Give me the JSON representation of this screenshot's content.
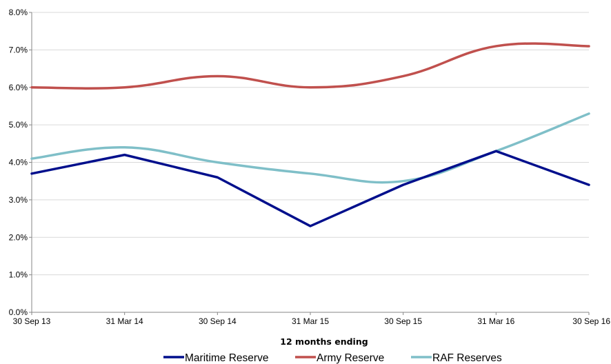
{
  "chart_data": {
    "type": "line",
    "categories": [
      "30 Sep 13",
      "31 Mar 14",
      "30 Sep 14",
      "31 Mar 15",
      "30 Sep 15",
      "31 Mar 16",
      "30 Sep 16"
    ],
    "series": [
      {
        "name": "Maritime Reserve",
        "values": [
          3.7,
          4.2,
          3.6,
          2.3,
          3.4,
          4.3,
          3.4
        ],
        "color": "#000F8C",
        "smooth": false
      },
      {
        "name": "Army Reserve",
        "values": [
          6.0,
          6.0,
          6.3,
          6.0,
          6.3,
          7.1,
          7.1
        ],
        "color": "#C0504D",
        "smooth": true
      },
      {
        "name": "RAF Reserves",
        "values": [
          4.1,
          4.4,
          4.0,
          3.7,
          3.5,
          4.3,
          5.3
        ],
        "color": "#7FBFC8",
        "smooth": true
      }
    ],
    "xlabel": "12 months ending",
    "ylabel": "",
    "ylim": [
      0,
      8
    ],
    "yticks": [
      "0.0%",
      "1.0%",
      "2.0%",
      "3.0%",
      "4.0%",
      "5.0%",
      "6.0%",
      "7.0%",
      "8.0%"
    ],
    "grid": true,
    "legend_position": "bottom"
  }
}
